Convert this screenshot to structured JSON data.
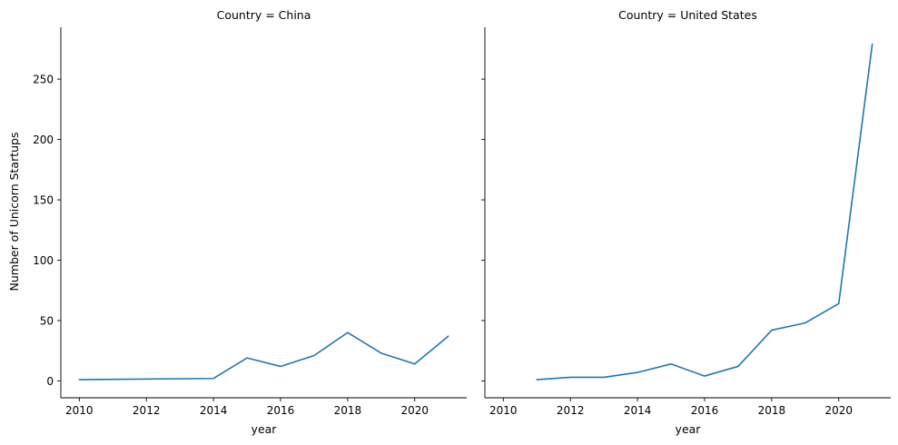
{
  "chart_data": [
    {
      "type": "line",
      "title": "Country = China",
      "xlabel": "year",
      "ylabel": "Number of Unicorn Startups",
      "xlim": [
        2009.45,
        2021.55
      ],
      "ylim": [
        -14,
        293
      ],
      "xticks": [
        2010,
        2012,
        2014,
        2016,
        2018,
        2020
      ],
      "yticks": [
        0,
        50,
        100,
        150,
        200,
        250
      ],
      "series": [
        {
          "color": "#1f77b4",
          "x": [
            2010,
            2014,
            2015,
            2016,
            2017,
            2018,
            2019,
            2020,
            2021
          ],
          "y": [
            1,
            2,
            19,
            12,
            21,
            40,
            23,
            14,
            37
          ]
        }
      ]
    },
    {
      "type": "line",
      "title": "Country = United States",
      "xlabel": "year",
      "ylabel": "",
      "xlim": [
        2009.45,
        2021.55
      ],
      "ylim": [
        -14,
        293
      ],
      "xticks": [
        2010,
        2012,
        2014,
        2016,
        2018,
        2020
      ],
      "yticks": [
        0,
        50,
        100,
        150,
        200,
        250
      ],
      "series": [
        {
          "color": "#1f77b4",
          "x": [
            2011,
            2012,
            2013,
            2014,
            2015,
            2016,
            2017,
            2018,
            2019,
            2020,
            2021
          ],
          "y": [
            1,
            3,
            3,
            7,
            14,
            4,
            12,
            42,
            48,
            64,
            279
          ]
        }
      ]
    }
  ]
}
